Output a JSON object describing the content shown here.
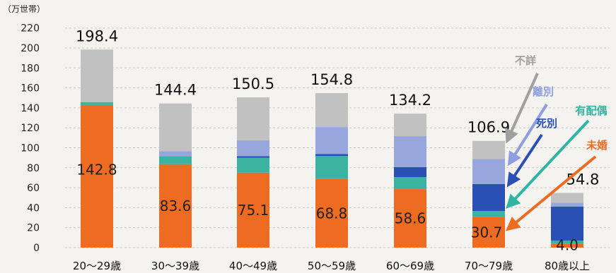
{
  "chart_data": {
    "type": "bar",
    "stacked": true,
    "unit_label": "（万世帯）",
    "ylim": [
      0,
      220
    ],
    "yticks": [
      0,
      20,
      40,
      60,
      80,
      100,
      120,
      140,
      160,
      180,
      200,
      220
    ],
    "grid": true,
    "categories": [
      "20～29歳",
      "30～39歳",
      "40～49歳",
      "50～59歳",
      "60～69歳",
      "70～79歳",
      "80歳以上"
    ],
    "totals": [
      198.4,
      144.4,
      150.5,
      154.8,
      134.2,
      106.9,
      54.8
    ],
    "series": [
      {
        "name": "未婚",
        "color": "#ee6b22",
        "values": [
          142.8,
          83.6,
          75.1,
          68.8,
          58.6,
          30.7,
          4.0
        ]
      },
      {
        "name": "有配偶",
        "color": "#3bb3a0",
        "values": [
          3.0,
          8.0,
          15.0,
          23.0,
          12.0,
          6.0,
          3.0
        ]
      },
      {
        "name": "死別",
        "color": "#2b50b5",
        "values": [
          0.0,
          0.0,
          1.5,
          2.0,
          10.0,
          27.0,
          34.0
        ]
      },
      {
        "name": "離別",
        "color": "#97a6dd",
        "values": [
          0.0,
          5.0,
          16.0,
          27.0,
          31.0,
          25.0,
          4.0
        ]
      },
      {
        "name": "不詳",
        "color": "#c1c1c1",
        "values": [
          52.6,
          47.8,
          42.9,
          34.0,
          22.6,
          18.2,
          9.8
        ]
      }
    ],
    "legend_placement": "right (callout arrows)"
  }
}
